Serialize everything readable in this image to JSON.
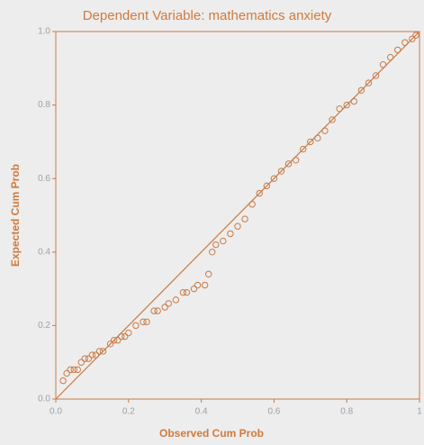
{
  "chart_data": {
    "type": "scatter",
    "title": "Dependent Variable: mathematics anxiety",
    "x_label": "Observed Cum Prob",
    "y_label": "Expected Cum Prob",
    "color": "#c97a44",
    "xlim": [
      0,
      1
    ],
    "ylim": [
      0,
      1
    ],
    "xticks": [
      {
        "value": 0,
        "label": "0.0"
      },
      0.2,
      0.4,
      0.6,
      0.8,
      1
    ],
    "yticks": [
      {
        "value": 0,
        "label": "0.0"
      },
      0.2,
      0.4,
      0.6,
      0.8,
      {
        "value": 1,
        "label": "1.0"
      }
    ],
    "x": [
      0.02,
      0.03,
      0.04,
      0.05,
      0.06,
      0.07,
      0.08,
      0.09,
      0.1,
      0.11,
      0.12,
      0.13,
      0.15,
      0.16,
      0.17,
      0.18,
      0.19,
      0.2,
      0.22,
      0.24,
      0.25,
      0.27,
      0.28,
      0.3,
      0.31,
      0.33,
      0.35,
      0.36,
      0.38,
      0.39,
      0.41,
      0.42,
      0.43,
      0.44,
      0.46,
      0.48,
      0.5,
      0.52,
      0.54,
      0.56,
      0.58,
      0.6,
      0.62,
      0.64,
      0.66,
      0.68,
      0.7,
      0.72,
      0.74,
      0.76,
      0.78,
      0.8,
      0.82,
      0.84,
      0.86,
      0.88,
      0.9,
      0.92,
      0.94,
      0.96,
      0.98,
      0.99
    ],
    "values": [
      0.05,
      0.07,
      0.08,
      0.08,
      0.08,
      0.1,
      0.11,
      0.11,
      0.12,
      0.12,
      0.13,
      0.13,
      0.15,
      0.16,
      0.16,
      0.17,
      0.17,
      0.18,
      0.2,
      0.21,
      0.21,
      0.24,
      0.24,
      0.25,
      0.26,
      0.27,
      0.29,
      0.29,
      0.3,
      0.31,
      0.31,
      0.34,
      0.4,
      0.42,
      0.43,
      0.45,
      0.47,
      0.49,
      0.53,
      0.56,
      0.58,
      0.6,
      0.62,
      0.64,
      0.65,
      0.68,
      0.7,
      0.71,
      0.73,
      0.76,
      0.79,
      0.8,
      0.81,
      0.84,
      0.86,
      0.88,
      0.91,
      0.93,
      0.95,
      0.97,
      0.98,
      0.99
    ]
  }
}
